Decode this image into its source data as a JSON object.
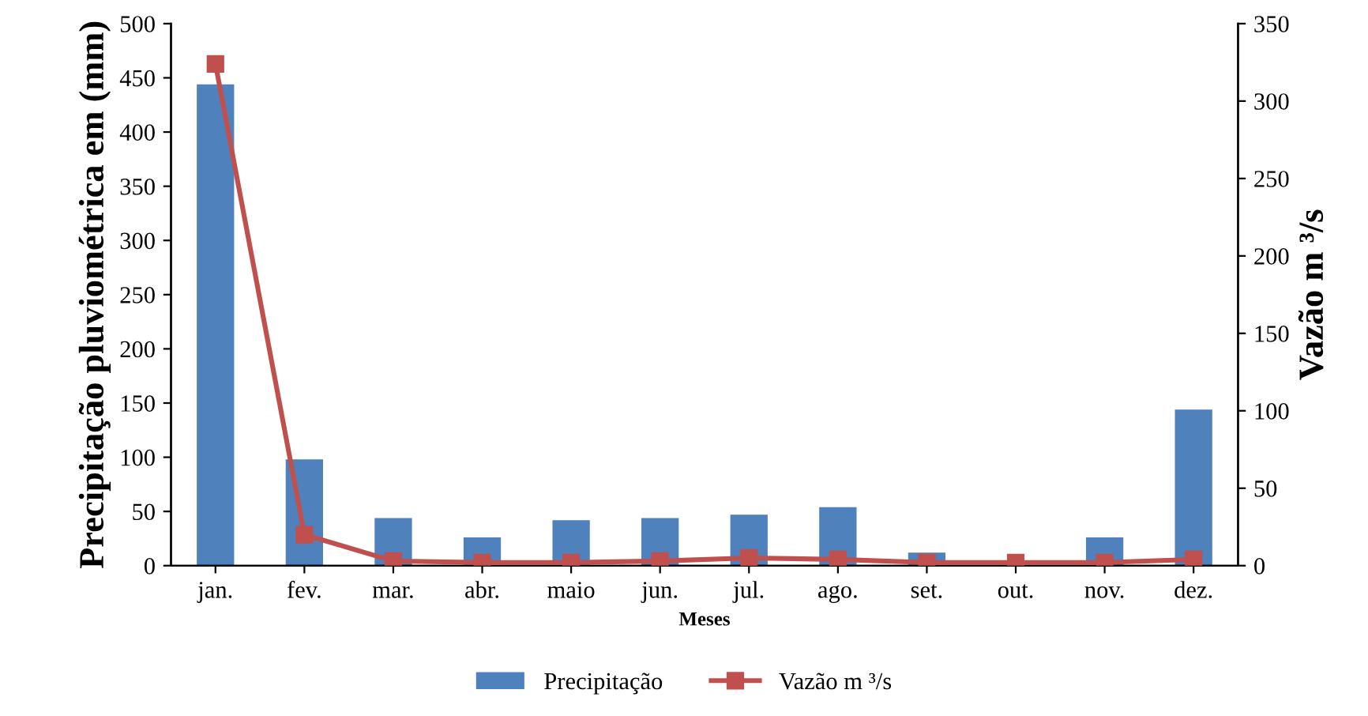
{
  "chart_data": {
    "type": "bar",
    "xlabel": "Meses",
    "ylabel": "Precipitação pluviométrica em (mm)",
    "y2label": "Vazão m ³/s",
    "categories": [
      "jan.",
      "fev.",
      "mar.",
      "abr.",
      "maio",
      "jun.",
      "jul.",
      "ago.",
      "set.",
      "out.",
      "nov.",
      "dez."
    ],
    "series": [
      {
        "name": "Precipitação",
        "color": "#4f81bd",
        "values": [
          444,
          98,
          44,
          26,
          42,
          44,
          47,
          54,
          12,
          0,
          26,
          144
        ]
      },
      {
        "name": "Vazão m ³/s",
        "type": "line",
        "axis": "y2",
        "color": "#c0504d",
        "marker": "square",
        "values": [
          324,
          20,
          3,
          2,
          2,
          3,
          5,
          4,
          2,
          2,
          2,
          4
        ]
      }
    ],
    "ylim": [
      0,
      500
    ],
    "yticks": [
      0,
      50,
      100,
      150,
      200,
      250,
      300,
      350,
      400,
      450,
      500
    ],
    "y2lim": [
      0,
      350
    ],
    "y2ticks": [
      0,
      50,
      100,
      150,
      200,
      250,
      300,
      350
    ],
    "grid": false,
    "legend": "bottom"
  }
}
